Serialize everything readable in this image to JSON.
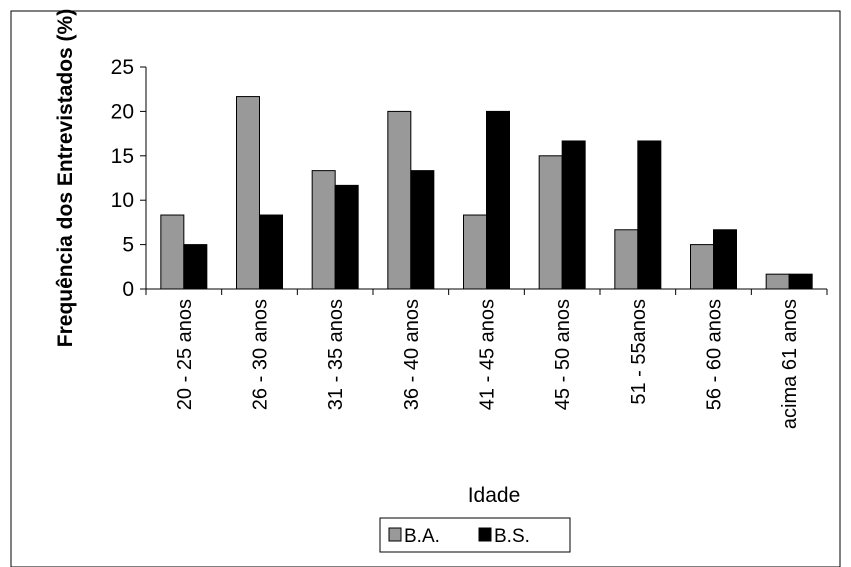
{
  "chart_data": {
    "type": "bar",
    "title": "",
    "xlabel": "Idade",
    "ylabel": "Frequência dos Entrevistados (%)",
    "categories": [
      "20 - 25 anos",
      "26 - 30 anos",
      "31 - 35 anos",
      "36 - 40 anos",
      "41 - 45 anos",
      "45 - 50 anos",
      "51 - 55anos",
      "56 - 60 anos",
      "acima 61 anos"
    ],
    "series": [
      {
        "name": "B.A.",
        "color": "#999999",
        "values": [
          8.33,
          21.67,
          13.33,
          20.0,
          8.33,
          15.0,
          6.67,
          5.0,
          1.67
        ]
      },
      {
        "name": "B.S.",
        "color": "#000000",
        "values": [
          5.0,
          8.33,
          11.67,
          13.33,
          20.0,
          16.67,
          16.67,
          6.67,
          1.67
        ]
      }
    ],
    "ylim": [
      0,
      25
    ],
    "yticks": [
      "0",
      "5",
      "10",
      "15",
      "20",
      "25"
    ],
    "grid": false,
    "legend_position": "bottom"
  }
}
